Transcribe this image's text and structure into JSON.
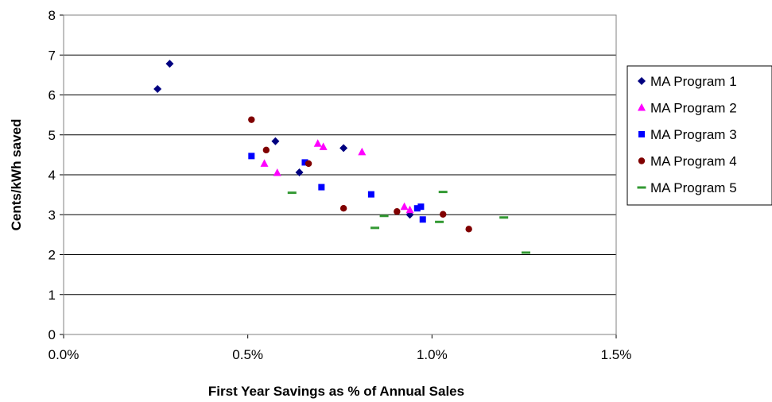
{
  "chart_data": {
    "type": "scatter",
    "title": "",
    "xlabel": "First Year Savings as % of Annual Sales",
    "ylabel": "Cents/kWh saved",
    "xlim": [
      0,
      0.015
    ],
    "ylim": [
      0,
      8
    ],
    "xticks": [
      0,
      0.005,
      0.01,
      0.015
    ],
    "xtick_labels": [
      "0.0%",
      "0.5%",
      "1.0%",
      "1.5%"
    ],
    "yticks": [
      0,
      1,
      2,
      3,
      4,
      5,
      6,
      7,
      8
    ],
    "ytick_labels": [
      "0",
      "1",
      "2",
      "3",
      "4",
      "5",
      "6",
      "7",
      "8"
    ],
    "grid": "horizontal",
    "legend_position": "right",
    "series": [
      {
        "name": "MA Program 1",
        "marker": "diamond",
        "color": "#000080",
        "points": [
          [
            0.00255,
            6.15
          ],
          [
            0.00288,
            6.78
          ],
          [
            0.00575,
            4.84
          ],
          [
            0.0064,
            4.06
          ],
          [
            0.0076,
            4.67
          ],
          [
            0.0094,
            3.0
          ]
        ]
      },
      {
        "name": "MA Program 2",
        "marker": "triangle",
        "color": "#ff00ff",
        "points": [
          [
            0.00545,
            4.28
          ],
          [
            0.0058,
            4.05
          ],
          [
            0.0069,
            4.78
          ],
          [
            0.00705,
            4.7
          ],
          [
            0.0081,
            4.57
          ],
          [
            0.00925,
            3.2
          ],
          [
            0.0094,
            3.12
          ]
        ]
      },
      {
        "name": "MA Program 3",
        "marker": "square",
        "color": "#0000ff",
        "points": [
          [
            0.0051,
            4.47
          ],
          [
            0.00655,
            4.31
          ],
          [
            0.007,
            3.69
          ],
          [
            0.00835,
            3.51
          ],
          [
            0.0096,
            3.16
          ],
          [
            0.0097,
            3.2
          ],
          [
            0.00975,
            2.88
          ]
        ]
      },
      {
        "name": "MA Program 4",
        "marker": "circle",
        "color": "#800000",
        "points": [
          [
            0.0051,
            5.38
          ],
          [
            0.0055,
            4.62
          ],
          [
            0.00665,
            4.28
          ],
          [
            0.0076,
            3.16
          ],
          [
            0.00905,
            3.08
          ],
          [
            0.0103,
            3.01
          ],
          [
            0.011,
            2.64
          ]
        ]
      },
      {
        "name": "MA Program 5",
        "marker": "dash",
        "color": "#339933",
        "points": [
          [
            0.0062,
            3.55
          ],
          [
            0.00845,
            2.67
          ],
          [
            0.0087,
            2.97
          ],
          [
            0.0102,
            2.82
          ],
          [
            0.0103,
            3.57
          ],
          [
            0.01195,
            2.93
          ],
          [
            0.01255,
            2.05
          ]
        ]
      }
    ]
  }
}
